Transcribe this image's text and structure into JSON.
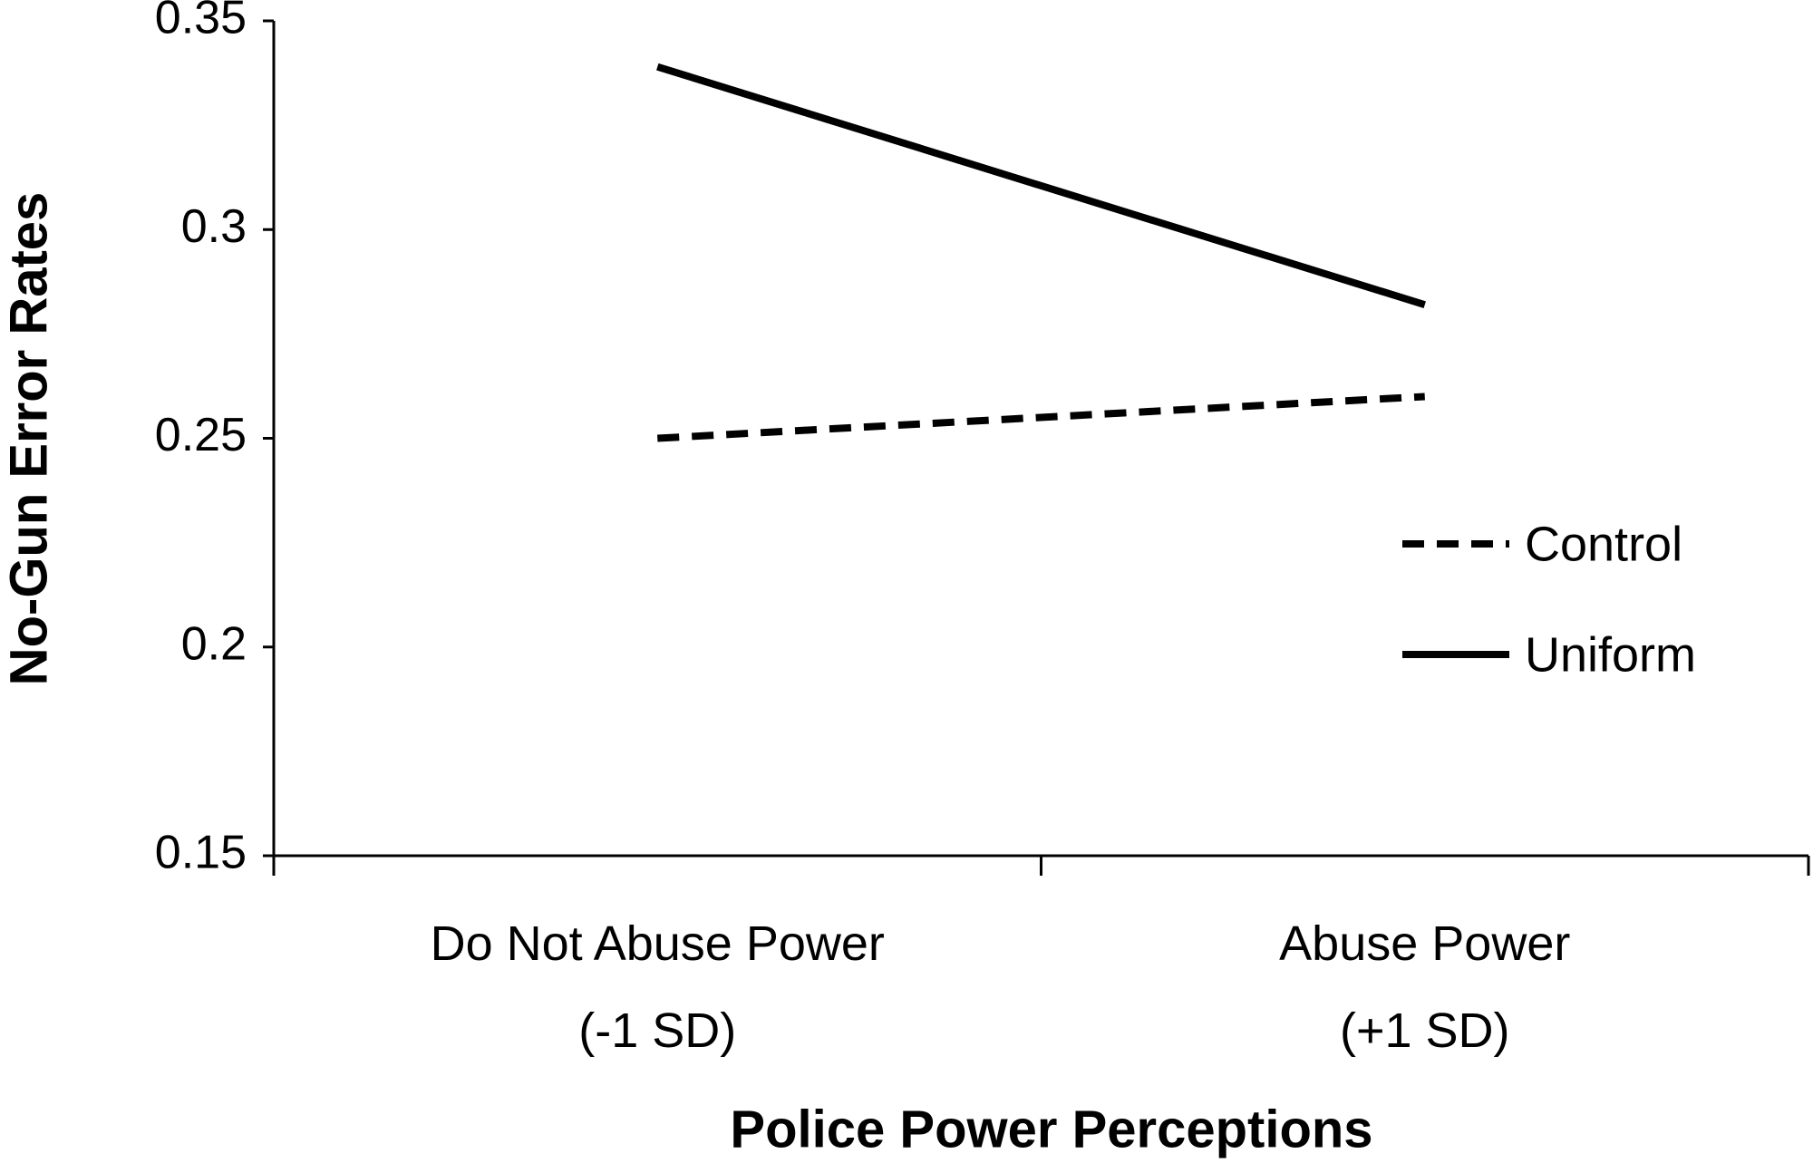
{
  "chart_data": {
    "type": "line",
    "x_label": "Police Power Perceptions",
    "y_label": "No-Gun Error Rates",
    "categories": [
      "Do Not Abuse Power\n(-1 SD)",
      "Abuse Power\n(+1 SD)"
    ],
    "series": [
      {
        "name": "Control",
        "color": "#000000",
        "style": "dashed",
        "values": [
          0.25,
          0.26
        ]
      },
      {
        "name": "Uniform",
        "color": "#000000",
        "style": "solid",
        "values": [
          0.339,
          0.282
        ]
      }
    ],
    "ylim": [
      0.15,
      0.35
    ],
    "yticks": [
      0.15,
      0.2,
      0.25,
      0.3,
      0.35
    ],
    "grid": false
  }
}
